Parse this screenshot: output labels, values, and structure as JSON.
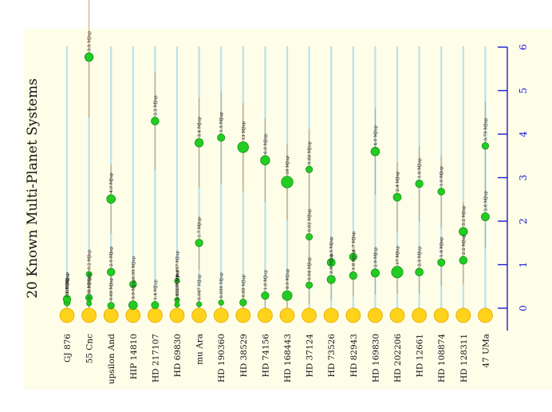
{
  "chart_data": {
    "type": "scatter",
    "title": "20 Known Multi-Planet Systems",
    "xlabel": "",
    "ylabel": "",
    "orientation": "rotated-90",
    "ylim": [
      0,
      6
    ],
    "yticks": [
      0,
      1,
      2,
      3,
      4,
      5,
      6
    ],
    "grid": false,
    "legend": "none",
    "categories": [
      "GJ 876",
      "55 Cnc",
      "upsilon And",
      "HIP 14810",
      "HD 217107",
      "HD 69830",
      "mu Ara",
      "HD 190360",
      "HD 38529",
      "HD 74156",
      "HD 168443",
      "HD 37124",
      "HD 73526",
      "HD 82943",
      "HD 169830",
      "HD 202206",
      "HD 12661",
      "HD 108874",
      "HD 128311",
      "47 UMa"
    ],
    "systems": [
      {
        "name": "GJ 876",
        "planets": [
          {
            "a": 0.21,
            "label": "0.02 MJup"
          },
          {
            "a": 0.13,
            "label": "0.6 MJup"
          },
          {
            "a": 0.21,
            "label": "1.9 MJup"
          }
        ]
      },
      {
        "name": "55 Cnc",
        "planets": [
          {
            "a": 0.11,
            "label": "0.03 MJup"
          },
          {
            "a": 0.24,
            "label": "0.8 MJup"
          },
          {
            "a": 0.78,
            "label": "0.2 MJup"
          },
          {
            "a": 5.77,
            "label": "3.9 MJup"
          }
        ]
      },
      {
        "name": "upsilon And",
        "planets": [
          {
            "a": 0.06,
            "label": "0.69 MJup"
          },
          {
            "a": 0.83,
            "label": "2.0 MJup"
          },
          {
            "a": 2.51,
            "label": "4.0 MJup"
          }
        ]
      },
      {
        "name": "HIP 14810",
        "planets": [
          {
            "a": 0.07,
            "label": "3.9 MJup"
          },
          {
            "a": 0.55,
            "label": "0.95 MJup"
          }
        ]
      },
      {
        "name": "HD 217107",
        "planets": [
          {
            "a": 0.07,
            "label": "1.4 MJup"
          },
          {
            "a": 4.3,
            "label": "2.2 MJup"
          }
        ]
      },
      {
        "name": "HD 69830",
        "planets": [
          {
            "a": 0.08,
            "label": "0.032 MJup"
          },
          {
            "a": 0.19,
            "label": "0.037 MJup"
          },
          {
            "a": 0.63,
            "label": "0.057 MJup"
          }
        ]
      },
      {
        "name": "mu Ara",
        "planets": [
          {
            "a": 0.09,
            "label": "0.047 MJup"
          },
          {
            "a": 1.5,
            "label": "1.7 MJup"
          },
          {
            "a": 3.8,
            "label": "3.4 MJup"
          }
        ]
      },
      {
        "name": "HD 190360",
        "planets": [
          {
            "a": 0.13,
            "label": "0.059 MJup"
          },
          {
            "a": 3.92,
            "label": "1.5 MJup"
          }
        ]
      },
      {
        "name": "HD 38529",
        "planets": [
          {
            "a": 0.13,
            "label": "0.85 MJup"
          },
          {
            "a": 3.7,
            "label": "13 MJup"
          }
        ]
      },
      {
        "name": "HD 74156",
        "planets": [
          {
            "a": 0.29,
            "label": "1.8 MJup"
          },
          {
            "a": 3.4,
            "label": "6.0 MJup"
          }
        ]
      },
      {
        "name": "HD 168443",
        "planets": [
          {
            "a": 0.29,
            "label": "8.0 MJup"
          },
          {
            "a": 2.9,
            "label": "18 MJup"
          }
        ]
      },
      {
        "name": "HD 37124",
        "planets": [
          {
            "a": 0.53,
            "label": "0.64 MJup"
          },
          {
            "a": 1.64,
            "label": "0.62 MJup"
          },
          {
            "a": 3.19,
            "label": "0.68 MJup"
          }
        ]
      },
      {
        "name": "HD 73526",
        "planets": [
          {
            "a": 0.66,
            "label": "2.9 MJup"
          },
          {
            "a": 1.05,
            "label": "2.5 MJup"
          }
        ]
      },
      {
        "name": "HD 82943",
        "planets": [
          {
            "a": 0.75,
            "label": "1.8 MJup"
          },
          {
            "a": 1.18,
            "label": "1.7 MJup"
          }
        ]
      },
      {
        "name": "HD 169830",
        "planets": [
          {
            "a": 0.81,
            "label": "2.9 MJup"
          },
          {
            "a": 3.6,
            "label": "4.0 MJup"
          }
        ]
      },
      {
        "name": "HD 202206",
        "planets": [
          {
            "a": 0.83,
            "label": "17 MJup"
          },
          {
            "a": 2.55,
            "label": "2.4 MJup"
          }
        ]
      },
      {
        "name": "HD 12661",
        "planets": [
          {
            "a": 0.83,
            "label": "2.3 MJup"
          },
          {
            "a": 2.86,
            "label": "1.8 MJup"
          }
        ]
      },
      {
        "name": "HD 108874",
        "planets": [
          {
            "a": 1.05,
            "label": "1.4 MJup"
          },
          {
            "a": 2.68,
            "label": "1.0 MJup"
          }
        ]
      },
      {
        "name": "HD 128311",
        "planets": [
          {
            "a": 1.1,
            "label": "2.2 MJup"
          },
          {
            "a": 1.76,
            "label": "3.2 MJup"
          }
        ]
      },
      {
        "name": "47 UMa",
        "planets": [
          {
            "a": 2.1,
            "label": "2.6 MJup"
          },
          {
            "a": 3.73,
            "label": "0.79 MJup"
          }
        ]
      }
    ],
    "colors": {
      "guide": "#b8e2ea",
      "orbit": "#d9a05a",
      "planet": "#22cc22",
      "planet_stroke": "#0a7a0a",
      "star": "#ffd21c",
      "star_stroke": "#e6a800",
      "axis": "#1a1ad8"
    }
  }
}
